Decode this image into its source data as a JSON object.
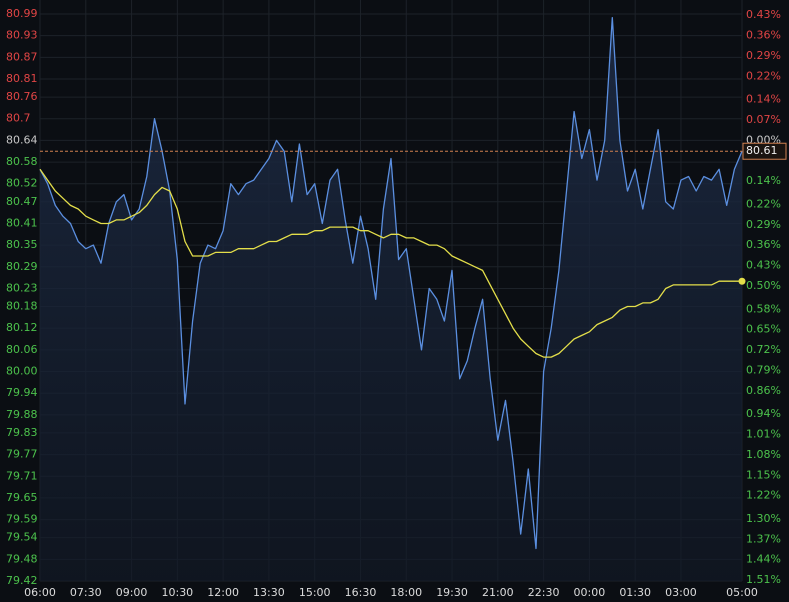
{
  "chart_data": {
    "type": "line",
    "x": [
      0,
      0.25,
      0.5,
      0.75,
      1,
      1.25,
      1.5,
      1.75,
      2,
      2.25,
      2.5,
      2.75,
      3,
      3.25,
      3.5,
      3.75,
      4,
      4.25,
      4.5,
      4.75,
      5,
      5.25,
      5.5,
      5.75,
      6,
      6.25,
      6.5,
      6.75,
      7,
      7.25,
      7.5,
      7.75,
      8,
      8.25,
      8.5,
      8.75,
      9,
      9.25,
      9.5,
      9.75,
      10,
      10.25,
      10.5,
      10.75,
      11,
      11.25,
      11.5,
      11.75,
      12,
      12.25,
      12.5,
      12.75,
      13,
      13.25,
      13.5,
      13.75,
      14,
      14.25,
      14.5,
      14.75,
      15,
      15.25,
      15.5,
      15.75,
      16,
      16.25,
      16.5,
      16.75,
      17,
      17.25,
      17.5,
      17.75,
      18,
      18.25,
      18.5,
      18.75,
      19,
      19.25,
      19.5,
      19.75,
      20,
      20.25,
      20.5,
      20.75,
      21,
      21.25,
      21.5,
      21.75,
      22,
      22.25,
      22.5,
      22.75,
      23
    ],
    "series": [
      {
        "color": "#5b8fe0",
        "fill": true,
        "values": [
          80.56,
          80.52,
          80.46,
          80.43,
          80.41,
          80.36,
          80.34,
          80.35,
          80.3,
          80.41,
          80.47,
          80.49,
          80.42,
          80.45,
          80.54,
          80.7,
          80.61,
          80.5,
          80.31,
          79.91,
          80.14,
          80.3,
          80.35,
          80.34,
          80.39,
          80.52,
          80.49,
          80.52,
          80.53,
          80.56,
          80.59,
          80.64,
          80.61,
          80.47,
          80.63,
          80.49,
          80.52,
          80.41,
          80.53,
          80.56,
          80.42,
          80.3,
          80.43,
          80.34,
          80.2,
          80.45,
          80.59,
          80.31,
          80.34,
          80.2,
          80.06,
          80.23,
          80.2,
          80.14,
          80.28,
          79.98,
          80.03,
          80.12,
          80.2,
          79.98,
          79.81,
          79.92,
          79.75,
          79.55,
          79.73,
          79.51,
          80.0,
          80.12,
          80.28,
          80.5,
          80.72,
          80.59,
          80.67,
          80.53,
          80.64,
          80.98,
          80.64,
          80.5,
          80.56,
          80.45,
          80.56,
          80.67,
          80.47,
          80.45,
          80.53,
          80.54,
          80.5,
          80.54,
          80.53,
          80.56,
          80.46,
          80.56,
          80.61
        ]
      },
      {
        "color": "#e3de4a",
        "end_dot": true,
        "values": [
          80.56,
          80.53,
          80.5,
          80.48,
          80.46,
          80.45,
          80.43,
          80.42,
          80.41,
          80.41,
          80.42,
          80.42,
          80.43,
          80.44,
          80.46,
          80.49,
          80.51,
          80.5,
          80.45,
          80.36,
          80.32,
          80.32,
          80.32,
          80.33,
          80.33,
          80.33,
          80.34,
          80.34,
          80.34,
          80.35,
          80.36,
          80.36,
          80.37,
          80.38,
          80.38,
          80.38,
          80.39,
          80.39,
          80.4,
          80.4,
          80.4,
          80.4,
          80.39,
          80.39,
          80.38,
          80.37,
          80.38,
          80.38,
          80.37,
          80.37,
          80.36,
          80.35,
          80.35,
          80.34,
          80.32,
          80.31,
          80.3,
          80.29,
          80.28,
          80.24,
          80.2,
          80.16,
          80.12,
          80.09,
          80.07,
          80.05,
          80.04,
          80.04,
          80.05,
          80.07,
          80.09,
          80.1,
          80.11,
          80.13,
          80.14,
          80.15,
          80.17,
          80.18,
          80.18,
          80.19,
          80.19,
          80.2,
          80.23,
          80.24,
          80.24,
          80.24,
          80.24,
          80.24,
          80.24,
          80.25,
          80.25,
          80.25,
          80.25
        ]
      }
    ],
    "last_price": 80.61,
    "last_price_color": "#d0804f",
    "xlim": [
      0,
      23
    ],
    "xticks": [
      {
        "value": 0,
        "label": "06:00"
      },
      {
        "value": 1.5,
        "label": "07:30"
      },
      {
        "value": 3,
        "label": "09:00"
      },
      {
        "value": 4.5,
        "label": "10:30"
      },
      {
        "value": 6,
        "label": "12:00"
      },
      {
        "value": 7.5,
        "label": "13:30"
      },
      {
        "value": 9,
        "label": "15:00"
      },
      {
        "value": 10.5,
        "label": "16:30"
      },
      {
        "value": 12,
        "label": "18:00"
      },
      {
        "value": 13.5,
        "label": "19:30"
      },
      {
        "value": 15,
        "label": "21:00"
      },
      {
        "value": 16.5,
        "label": "22:30"
      },
      {
        "value": 18,
        "label": "00:00"
      },
      {
        "value": 19.5,
        "label": "01:30"
      },
      {
        "value": 21,
        "label": "03:00"
      },
      {
        "value": 23,
        "label": "05:00"
      }
    ],
    "ylim": [
      79.42,
      80.99
    ],
    "yticks": [
      80.99,
      80.93,
      80.87,
      80.81,
      80.76,
      80.7,
      80.64,
      80.58,
      80.52,
      80.47,
      80.41,
      80.35,
      80.29,
      80.23,
      80.18,
      80.12,
      80.06,
      {
        "value": 80,
        "label": "80.00"
      },
      79.94,
      79.88,
      79.83,
      79.77,
      79.71,
      79.65,
      79.59,
      79.54,
      79.48,
      79.42
    ],
    "y2lim": [
      -1.513,
      0.434
    ],
    "y2ticks": [
      {
        "value": 0.43,
        "label": "0.43%"
      },
      {
        "value": 0.36,
        "label": "0.36%"
      },
      {
        "value": 0.29,
        "label": "0.29%"
      },
      {
        "value": 0.22,
        "label": "0.22%"
      },
      {
        "value": 0.14,
        "label": "0.14%"
      },
      {
        "value": 0.07,
        "label": "0.07%"
      },
      {
        "value": 0,
        "label": "0.00%"
      },
      {
        "value": -0.14,
        "label": "0.14%"
      },
      {
        "value": -0.22,
        "label": "0.22%"
      },
      {
        "value": -0.29,
        "label": "0.29%"
      },
      {
        "value": -0.36,
        "label": "0.36%"
      },
      {
        "value": -0.43,
        "label": "0.43%"
      },
      {
        "value": -0.5,
        "label": "0.50%"
      },
      {
        "value": -0.58,
        "label": "0.58%"
      },
      {
        "value": -0.65,
        "label": "0.65%"
      },
      {
        "value": -0.72,
        "label": "0.72%"
      },
      {
        "value": -0.79,
        "label": "0.79%"
      },
      {
        "value": -0.86,
        "label": "0.86%"
      },
      {
        "value": -0.94,
        "label": "0.94%"
      },
      {
        "value": -1.01,
        "label": "1.01%"
      },
      {
        "value": -1.08,
        "label": "1.08%"
      },
      {
        "value": -1.15,
        "label": "1.15%"
      },
      {
        "value": -1.22,
        "label": "1.22%"
      },
      {
        "value": -1.3,
        "label": "1.30%"
      },
      {
        "value": -1.37,
        "label": "1.37%"
      },
      {
        "value": -1.44,
        "label": "1.44%"
      },
      {
        "value": -1.51,
        "label": "1.51%"
      }
    ],
    "up_color": "#e04545",
    "down_color": "#4cc24c",
    "neutral_color": "#c8c8c8",
    "grid": true
  }
}
